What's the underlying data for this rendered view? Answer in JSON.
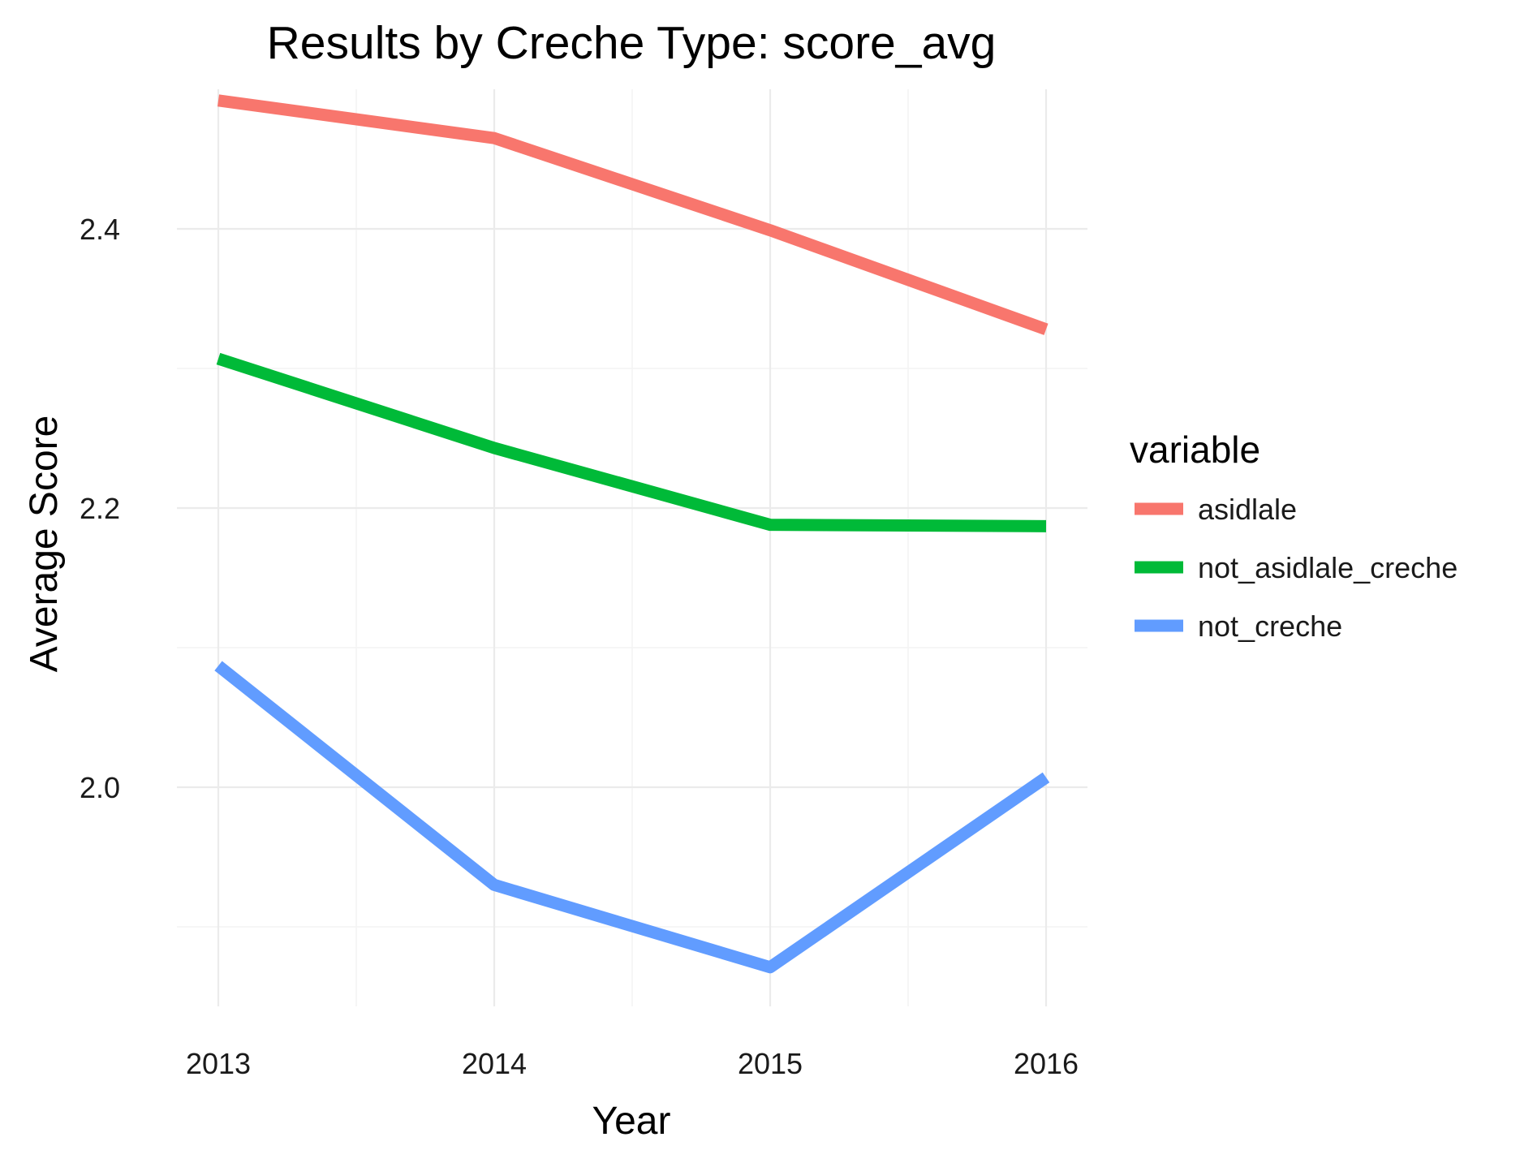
{
  "chart_data": {
    "type": "line",
    "title": "Results by Creche Type: score_avg",
    "xlabel": "Year",
    "ylabel": "Average Score",
    "x": [
      2013,
      2014,
      2015,
      2016
    ],
    "x_tick_labels": [
      "2013",
      "2014",
      "2015",
      "2016"
    ],
    "y_tick_values": [
      2.0,
      2.2,
      2.4
    ],
    "y_tick_labels": [
      "2.0",
      "2.2",
      "2.4"
    ],
    "xlim": [
      2012.85,
      2016.15
    ],
    "ylim": [
      1.843,
      2.5
    ],
    "grid": true,
    "legend": {
      "title": "variable",
      "position": "right"
    },
    "series": [
      {
        "name": "asidlale",
        "color": "#F8766D",
        "values": [
          2.492,
          2.465,
          2.399,
          2.328
        ]
      },
      {
        "name": "not_asidlale_creche",
        "color": "#00BA38",
        "values": [
          2.307,
          2.243,
          2.188,
          2.187
        ]
      },
      {
        "name": "not_creche",
        "color": "#619CFF",
        "values": [
          2.087,
          1.93,
          1.871,
          2.007
        ]
      }
    ]
  }
}
